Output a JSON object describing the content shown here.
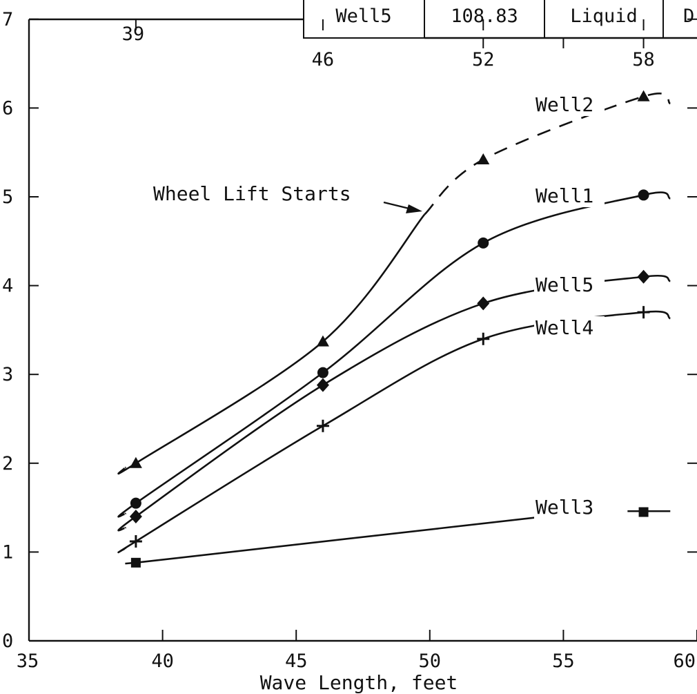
{
  "chart_data": {
    "type": "line",
    "title": "",
    "xlabel": "Wave Length, feet",
    "ylabel": "",
    "xlim": [
      35,
      60
    ],
    "ylim": [
      0,
      7
    ],
    "x_ticks": [
      "35",
      "40",
      "45",
      "50",
      "55",
      "60"
    ],
    "y_ticks": [
      "0",
      "1",
      "2",
      "3",
      "4",
      "5",
      "6",
      "7"
    ],
    "top_labels": [
      {
        "x": 39,
        "text": "39"
      },
      {
        "x": 46,
        "text": "46"
      },
      {
        "x": 52,
        "text": "52"
      },
      {
        "x": 58,
        "text": "58"
      }
    ],
    "grid": false,
    "legend": "none",
    "table_row": [
      "Well5",
      "108.83",
      "Liquid",
      "D"
    ],
    "series": [
      {
        "name": "Well1",
        "marker": "circle",
        "x": [
          39,
          46,
          52,
          58
        ],
        "y": [
          1.55,
          3.02,
          4.48,
          5.02
        ]
      },
      {
        "name": "Well2",
        "marker": "triangle",
        "x": [
          39,
          46,
          52,
          58
        ],
        "y": [
          2.0,
          3.37,
          5.42,
          6.13
        ]
      },
      {
        "name": "Well3",
        "marker": "square",
        "x": [
          39,
          58
        ],
        "y": [
          0.88,
          1.45
        ]
      },
      {
        "name": "Well4",
        "marker": "plus",
        "x": [
          39,
          46,
          52,
          58
        ],
        "y": [
          1.12,
          2.42,
          3.4,
          3.7
        ]
      },
      {
        "name": "Well5",
        "marker": "diamond",
        "x": [
          39,
          46,
          52,
          58
        ],
        "y": [
          1.4,
          2.88,
          3.8,
          4.1
        ]
      }
    ],
    "annotations": [
      {
        "text": "Wheel Lift Starts",
        "x": 49.8,
        "y": 4.85
      }
    ]
  }
}
